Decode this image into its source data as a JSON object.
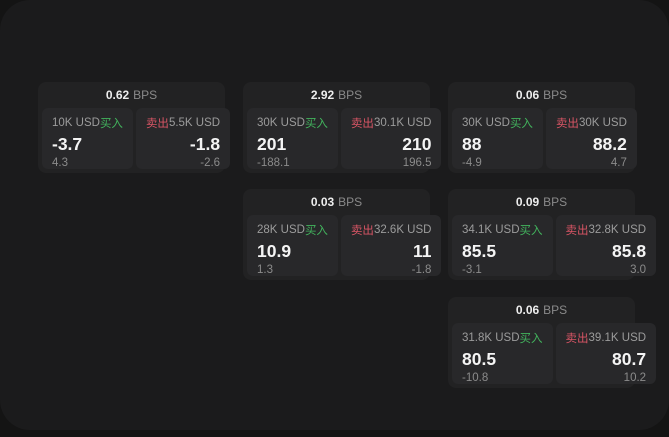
{
  "labels": {
    "bps_unit": "BPS",
    "buy": "买入",
    "sell": "卖出"
  },
  "colors": {
    "backdrop": "#141414",
    "page_bg": "#1b1b1c",
    "card_bg": "#222223",
    "panel_bg": "#28282a",
    "buy_green": "#42b35d",
    "sell_red": "#d85565"
  },
  "cards": [
    {
      "bps": "0.62",
      "buy": {
        "size": "10K USD",
        "price": "-3.7",
        "change": "4.3"
      },
      "sell": {
        "size": "5.5K USD",
        "price": "-1.8",
        "change": "-2.6"
      }
    },
    {
      "bps": "2.92",
      "buy": {
        "size": "30K USD",
        "price": "201",
        "change": "-188.1"
      },
      "sell": {
        "size": "30.1K USD",
        "price": "210",
        "change": "196.5"
      }
    },
    {
      "bps": "0.06",
      "buy": {
        "size": "30K USD",
        "price": "88",
        "change": "-4.9"
      },
      "sell": {
        "size": "30K USD",
        "price": "88.2",
        "change": "4.7"
      }
    },
    {
      "bps": "0.03",
      "buy": {
        "size": "28K USD",
        "price": "10.9",
        "change": "1.3"
      },
      "sell": {
        "size": "32.6K USD",
        "price": "11",
        "change": "-1.8"
      }
    },
    {
      "bps": "0.09",
      "buy": {
        "size": "34.1K USD",
        "price": "85.5",
        "change": "-3.1"
      },
      "sell": {
        "size": "32.8K USD",
        "price": "85.8",
        "change": "3.0"
      }
    },
    {
      "bps": "0.06",
      "buy": {
        "size": "31.8K USD",
        "price": "80.5",
        "change": "-10.8"
      },
      "sell": {
        "size": "39.1K USD",
        "price": "80.7",
        "change": "10.2"
      }
    }
  ]
}
